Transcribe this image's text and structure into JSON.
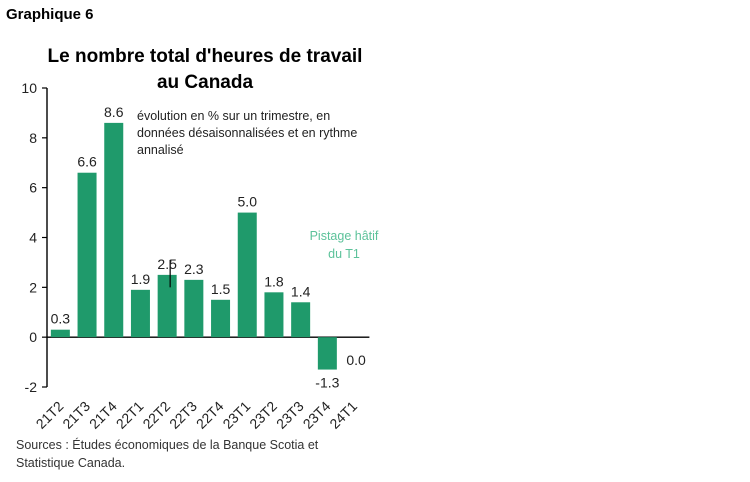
{
  "header": {
    "graph_label": "Graphique 6"
  },
  "title_lines": [
    "Le nombre total d'heures de travail",
    "au Canada"
  ],
  "annotation_lines": [
    "évolution en % sur un trimestre, en",
    "données désaisonnalisées et en rythme",
    "annalisé"
  ],
  "highlight_lines": [
    "Pistage hâtif",
    "du T1"
  ],
  "sources_lines": [
    "Sources : Études économiques de la Banque Scotia et",
    "Statistique Canada."
  ],
  "chart_data": {
    "type": "bar",
    "categories": [
      "21T2",
      "21T3",
      "21T4",
      "22T1",
      "22T2",
      "22T3",
      "22T4",
      "23T1",
      "23T2",
      "23T3",
      "23T4",
      "24T1"
    ],
    "values": [
      0.3,
      6.6,
      8.6,
      1.9,
      2.5,
      2.3,
      1.5,
      5.0,
      1.8,
      1.4,
      -1.3,
      0.0
    ],
    "value_labels": [
      "0.3",
      "6.6",
      "8.6",
      "1.9",
      "2.5",
      "2.3",
      "1.5",
      "5.0",
      "1.8",
      "1.4",
      "-1.3",
      "0.0"
    ],
    "ylim": [
      -2,
      10
    ],
    "yticks": [
      "-2",
      "0",
      "2",
      "4",
      "6",
      "8",
      "10"
    ],
    "grid": false,
    "bar_color": "#1f9a6b",
    "highlight_color": "#5cc29a"
  }
}
